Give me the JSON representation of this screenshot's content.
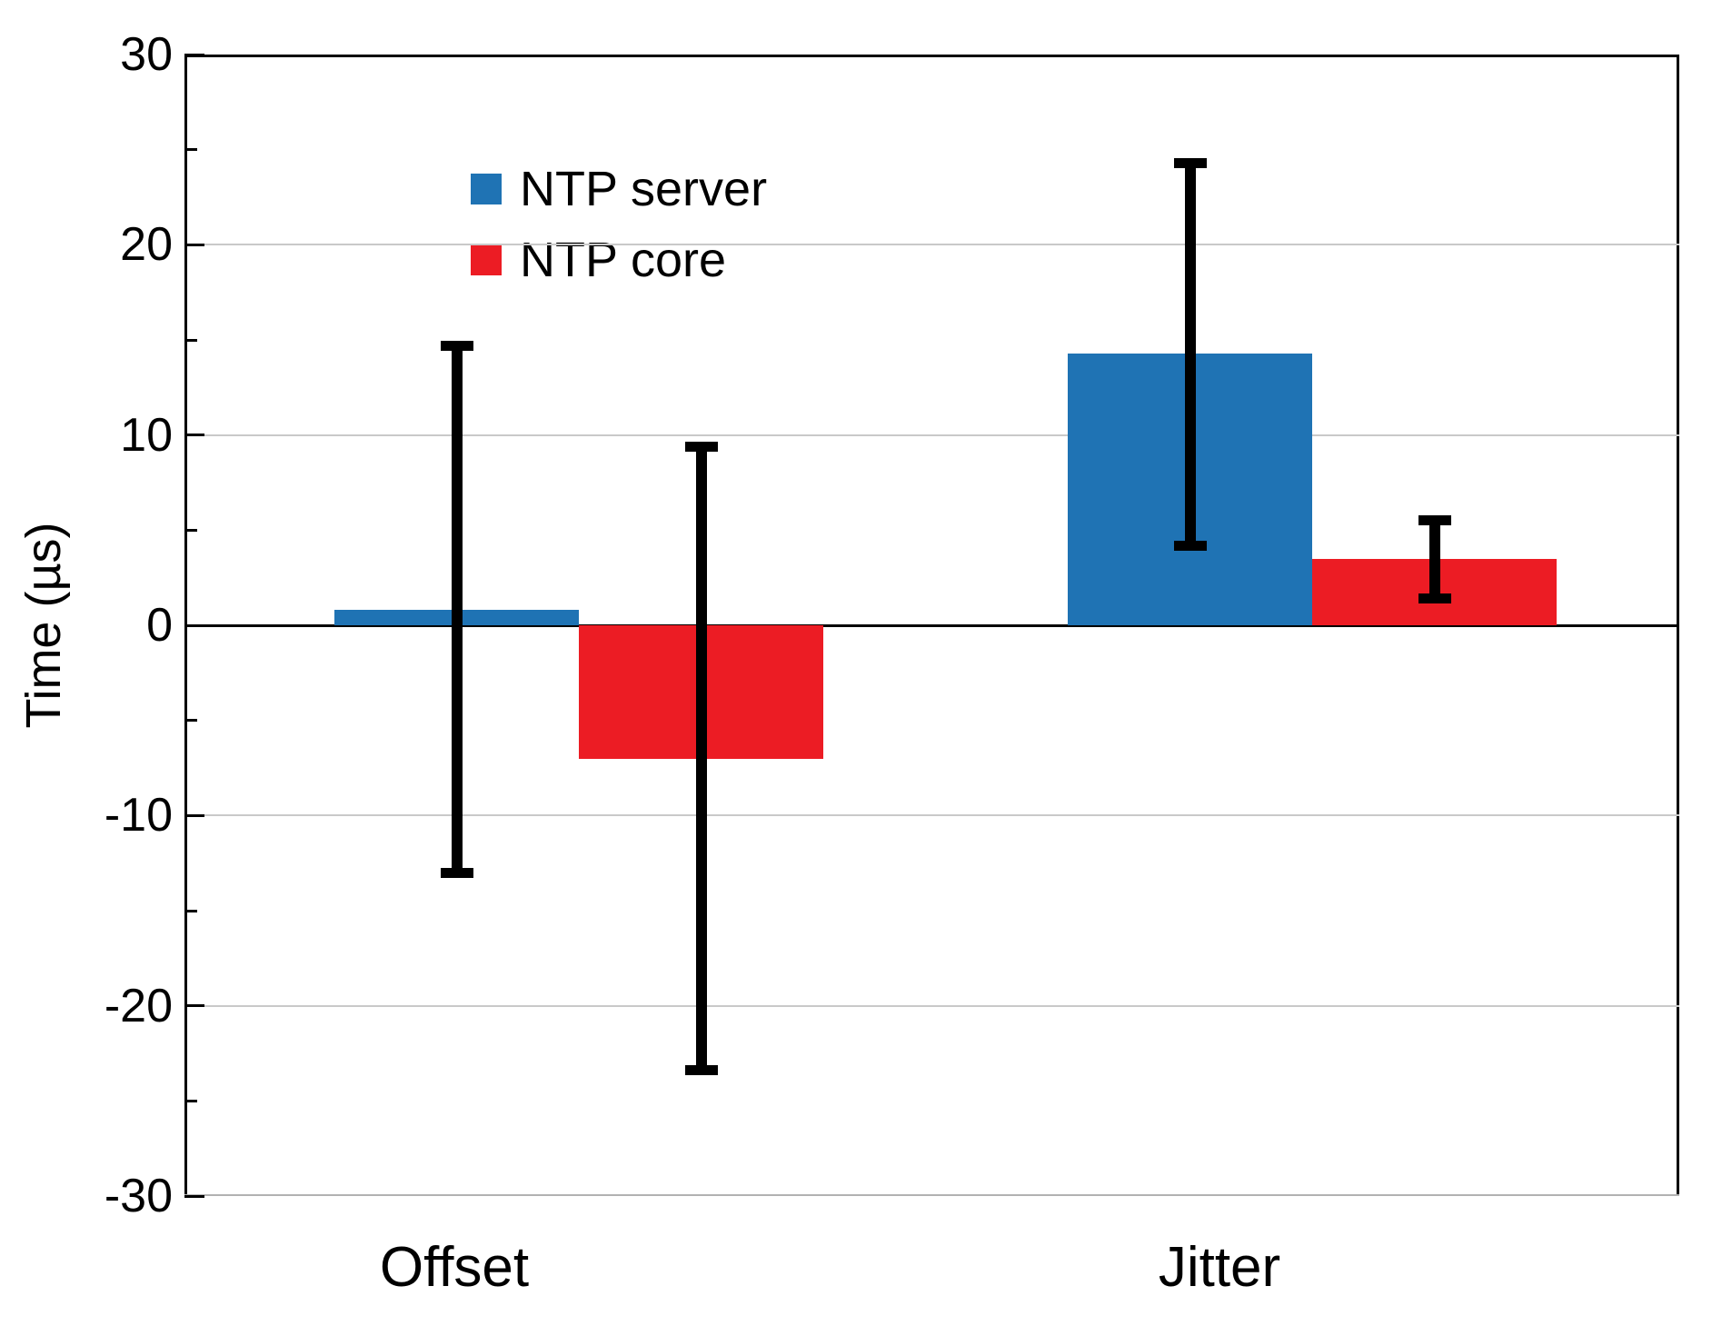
{
  "figure": {
    "background": "#ffffff",
    "y_axis_label": "Time (µs)",
    "x_category_labels": [
      "Offset",
      "Jitter"
    ],
    "colors": {
      "ntp_server": "#1f73b4",
      "ntp_core": "#ec1c24",
      "error_bar": "#000000",
      "gridline": "#c9c9c9",
      "zero_line": "#000000"
    }
  },
  "chart_data": {
    "type": "bar",
    "title": "",
    "xlabel": "",
    "ylabel": "Time (µs)",
    "categories": [
      "Offset",
      "Jitter"
    ],
    "series": [
      {
        "name": "NTP server",
        "color": "#1f73b4",
        "values": [
          0.8,
          14.3
        ],
        "error_plus": [
          13.9,
          10.0
        ],
        "error_minus": [
          13.8,
          10.1
        ]
      },
      {
        "name": "NTP core",
        "color": "#ec1c24",
        "values": [
          -7.0,
          3.5
        ],
        "error_plus": [
          16.4,
          2.0
        ],
        "error_minus": [
          16.4,
          2.1
        ]
      }
    ],
    "ylim": [
      -30,
      30
    ],
    "ytick_step": 10,
    "yminor_step": 5,
    "ytick_labels": [
      "30",
      "20",
      "10",
      "0",
      "-10",
      "-20",
      "-30"
    ],
    "grid": "horizontal gridlines at major ticks, light gray; solid black line at zero",
    "legend_position": "upper left inside plot",
    "error_bar_color": "#000000"
  }
}
